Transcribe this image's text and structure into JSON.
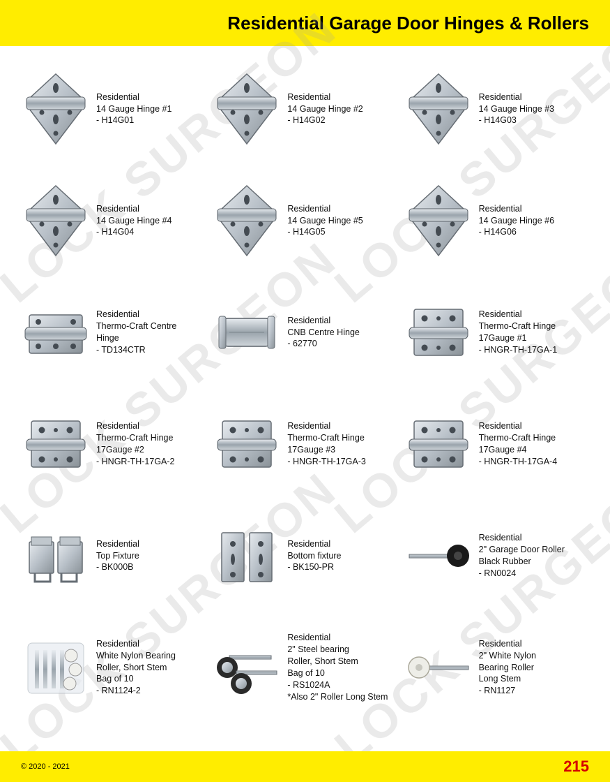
{
  "header": {
    "title": "Residential Garage Door Hinges & Rollers"
  },
  "footer": {
    "copyright": "© 2020 - 2021",
    "page": "215"
  },
  "watermark": "LOCK SURGEON",
  "colors": {
    "header_bg": "#ffed00",
    "footer_bg": "#ffed00",
    "page_num": "#d40000",
    "metal_light": "#d8dce0",
    "metal_mid": "#a8b0b8",
    "metal_dark": "#7a828a",
    "metal_edge": "#555c63"
  },
  "products": [
    {
      "icon": "hinge-diamond",
      "line1": "Residential",
      "line2": "14 Gauge Hinge #1",
      "line3": "",
      "code": "- H14G01"
    },
    {
      "icon": "hinge-diamond",
      "line1": "Residential",
      "line2": "14 Gauge Hinge #2",
      "line3": "",
      "code": "- H14G02"
    },
    {
      "icon": "hinge-diamond",
      "line1": "Residential",
      "line2": "14 Gauge Hinge #3",
      "line3": "",
      "code": "- H14G03"
    },
    {
      "icon": "hinge-diamond",
      "line1": "Residential",
      "line2": "14 Gauge Hinge #4",
      "line3": "",
      "code": "- H14G04"
    },
    {
      "icon": "hinge-diamond",
      "line1": "Residential",
      "line2": "14 Gauge Hinge #5",
      "line3": "",
      "code": "- H14G05"
    },
    {
      "icon": "hinge-diamond",
      "line1": "Residential",
      "line2": "14 Gauge Hinge #6",
      "line3": "",
      "code": "- H14G06"
    },
    {
      "icon": "hinge-center",
      "line1": "Residential",
      "line2": "Thermo-Craft Centre",
      "line3": "Hinge",
      "code": "- TD134CTR"
    },
    {
      "icon": "hinge-barrel",
      "line1": "Residential",
      "line2": "CNB Centre Hinge",
      "line3": "- 62770",
      "code": ""
    },
    {
      "icon": "hinge-rect",
      "line1": "Residential",
      "line2": "Thermo-Craft Hinge",
      "line3": "17Gauge #1",
      "code": "- HNGR-TH-17GA-1"
    },
    {
      "icon": "hinge-rect",
      "line1": "Residential",
      "line2": "Thermo-Craft Hinge",
      "line3": "17Gauge #2",
      "code": "- HNGR-TH-17GA-2"
    },
    {
      "icon": "hinge-rect",
      "line1": "Residential",
      "line2": "Thermo-Craft Hinge",
      "line3": "17Gauge #3",
      "code": "- HNGR-TH-17GA-3"
    },
    {
      "icon": "hinge-rect",
      "line1": "Residential",
      "line2": "Thermo-Craft Hinge",
      "line3": "17Gauge #4",
      "code": "- HNGR-TH-17GA-4"
    },
    {
      "icon": "fixture-top",
      "line1": "Residential",
      "line2": "Top Fixture",
      "line3": "- BK000B",
      "code": ""
    },
    {
      "icon": "fixture-bottom",
      "line1": "Residential",
      "line2": "Bottom fixture",
      "line3": "- BK150-PR",
      "code": ""
    },
    {
      "icon": "roller-black",
      "line1": "Residential",
      "line2": "2\" Garage Door Roller",
      "line3": "Black Rubber",
      "code": "- RN0024"
    },
    {
      "icon": "roller-bag",
      "line1": "Residential",
      "line2": "White Nylon Bearing",
      "line3": "Roller, Short Stem",
      "line4": "Bag of 10",
      "code": "- RN1124-2"
    },
    {
      "icon": "roller-steel",
      "line1": "Residential",
      "line2": "2\" Steel bearing",
      "line3": "Roller, Short Stem",
      "line4": "Bag of 10",
      "code": "- RS1024A",
      "extra": "*Also 2\" Roller Long Stem"
    },
    {
      "icon": "roller-white",
      "line1": "Residential",
      "line2": "2\" White Nylon",
      "line3": "Bearing Roller",
      "line4": "Long Stem",
      "code": "- RN1127"
    }
  ]
}
